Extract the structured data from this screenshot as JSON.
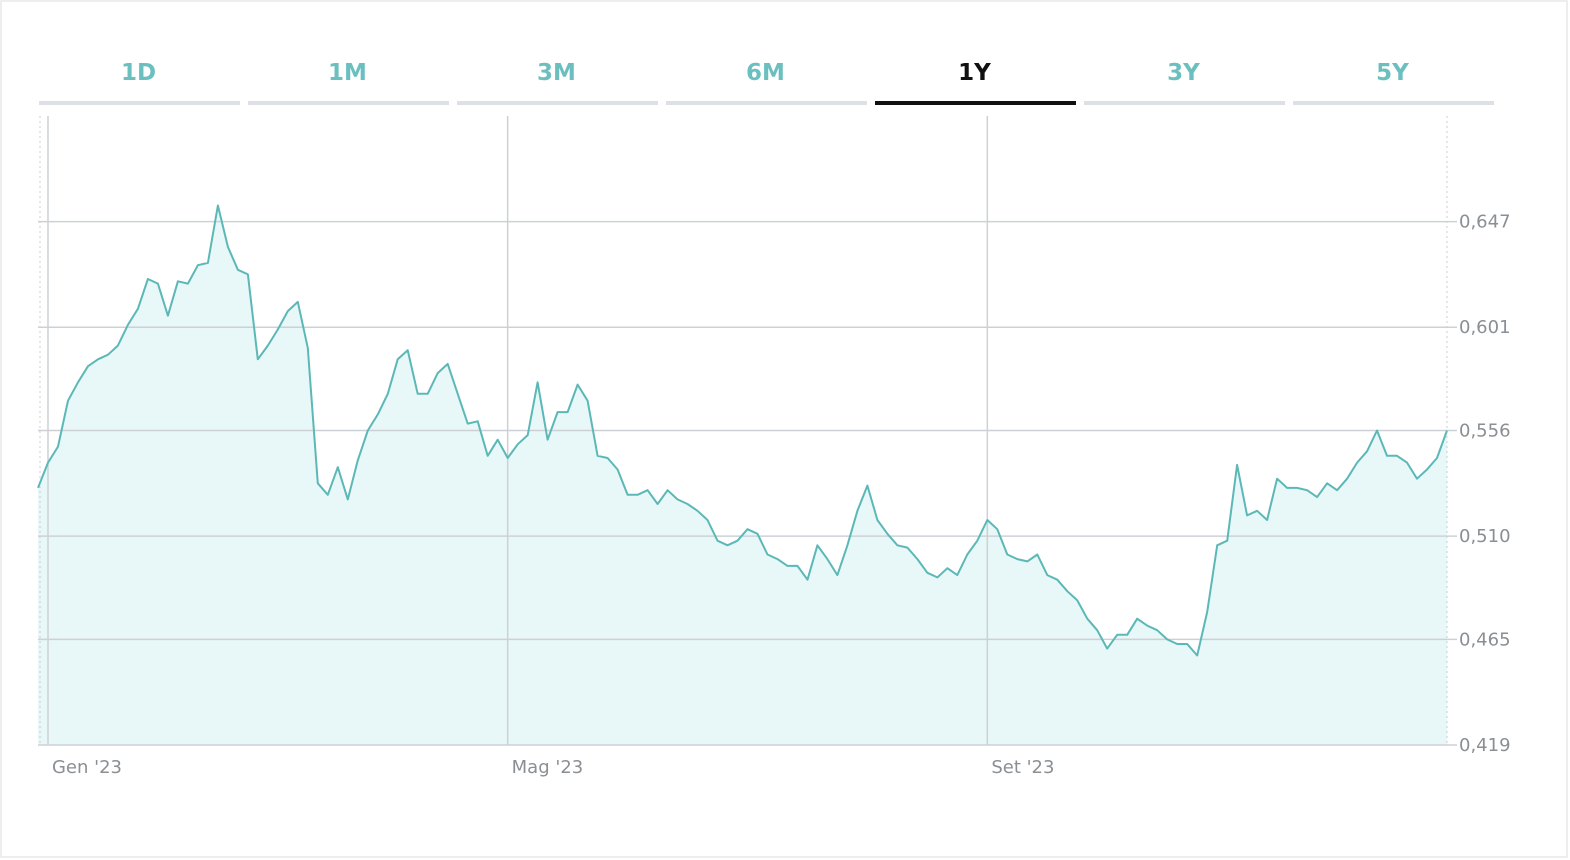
{
  "tabs": [
    "1D",
    "1M",
    "3M",
    "6M",
    "1Y",
    "3Y",
    "5Y"
  ],
  "selected_tab": 4,
  "chart_data": {
    "type": "area",
    "color": "#5bb8b6",
    "fill": "#e8f7f7",
    "values": [
      0.531,
      0.542,
      0.549,
      0.569,
      0.577,
      0.584,
      0.587,
      0.589,
      0.593,
      0.602,
      0.609,
      0.622,
      0.62,
      0.606,
      0.621,
      0.62,
      0.628,
      0.629,
      0.654,
      0.636,
      0.626,
      0.624,
      0.587,
      0.593,
      0.6,
      0.608,
      0.612,
      0.592,
      0.533,
      0.528,
      0.54,
      0.526,
      0.543,
      0.556,
      0.563,
      0.572,
      0.587,
      0.591,
      0.572,
      0.572,
      0.581,
      0.585,
      0.572,
      0.559,
      0.56,
      0.545,
      0.552,
      0.544,
      0.55,
      0.554,
      0.577,
      0.552,
      0.564,
      0.564,
      0.576,
      0.569,
      0.545,
      0.544,
      0.539,
      0.528,
      0.528,
      0.53,
      0.524,
      0.53,
      0.526,
      0.524,
      0.521,
      0.517,
      0.508,
      0.506,
      0.508,
      0.513,
      0.511,
      0.502,
      0.5,
      0.497,
      0.497,
      0.491,
      0.506,
      0.5,
      0.493,
      0.506,
      0.521,
      0.532,
      0.517,
      0.511,
      0.506,
      0.505,
      0.5,
      0.494,
      0.492,
      0.496,
      0.493,
      0.502,
      0.508,
      0.517,
      0.513,
      0.502,
      0.5,
      0.499,
      0.502,
      0.493,
      0.491,
      0.486,
      0.482,
      0.474,
      0.469,
      0.461,
      0.467,
      0.467,
      0.474,
      0.471,
      0.469,
      0.465,
      0.463,
      0.463,
      0.458,
      0.477,
      0.506,
      0.508,
      0.541,
      0.519,
      0.521,
      0.517,
      0.535,
      0.531,
      0.531,
      0.53,
      0.527,
      0.533,
      0.53,
      0.535,
      0.542,
      0.547,
      0.556,
      0.545,
      0.545,
      0.542,
      0.535,
      0.539,
      0.544,
      0.556
    ],
    "xlim": [
      0,
      141
    ],
    "xticks": [
      {
        "value": 1,
        "label": "Gen '23"
      },
      {
        "value": 47,
        "label": "Mag '23"
      },
      {
        "value": 95,
        "label": "Set '23"
      }
    ],
    "ylim": [
      0.419,
      0.693
    ],
    "yticks": [
      {
        "value": 0.419,
        "label": "0,419"
      },
      {
        "value": 0.465,
        "label": "0,465"
      },
      {
        "value": 0.51,
        "label": "0,510"
      },
      {
        "value": 0.556,
        "label": "0,556"
      },
      {
        "value": 0.601,
        "label": "0,601"
      },
      {
        "value": 0.647,
        "label": "0,647"
      }
    ],
    "grid": true
  }
}
